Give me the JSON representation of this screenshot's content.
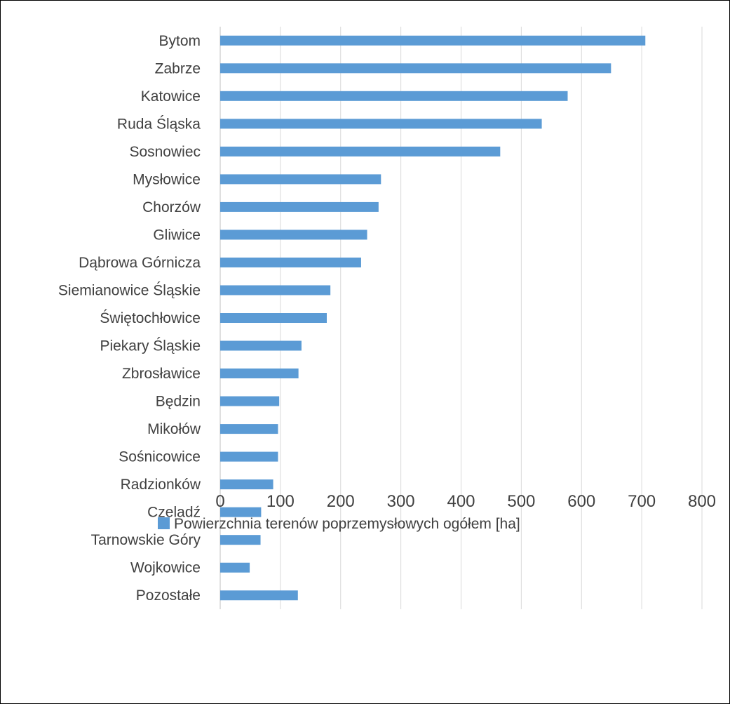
{
  "chart_data": {
    "type": "bar",
    "orientation": "horizontal",
    "categories": [
      "Bytom",
      "Zabrze",
      "Katowice",
      "Ruda Śląska",
      "Sosnowiec",
      "Mysłowice",
      "Chorzów",
      "Gliwice",
      "Dąbrowa Górnicza",
      "Siemianowice Śląskie",
      "Świętochłowice",
      "Piekary Śląskie",
      "Zbrosławice",
      "Będzin",
      "Mikołów",
      "Sośnicowice",
      "Radzionków",
      "Czeladź",
      "Tarnowskie Góry",
      "Wojkowice",
      "Pozostałe"
    ],
    "series": [
      {
        "name": "Powierzchnia terenów poprzemysłowych ogółem [ha]",
        "color": "#5b9bd5",
        "values": [
          706,
          649,
          577,
          534,
          465,
          267,
          263,
          244,
          234,
          183,
          177,
          135,
          130,
          98,
          96,
          96,
          88,
          68,
          67,
          49,
          129
        ]
      }
    ],
    "xlim": [
      0,
      800
    ],
    "xticks": [
      0,
      100,
      200,
      300,
      400,
      500,
      600,
      700,
      800
    ],
    "grid": "vertical",
    "legend_position": "bottom",
    "gridline_color": "#d9d9d9"
  }
}
